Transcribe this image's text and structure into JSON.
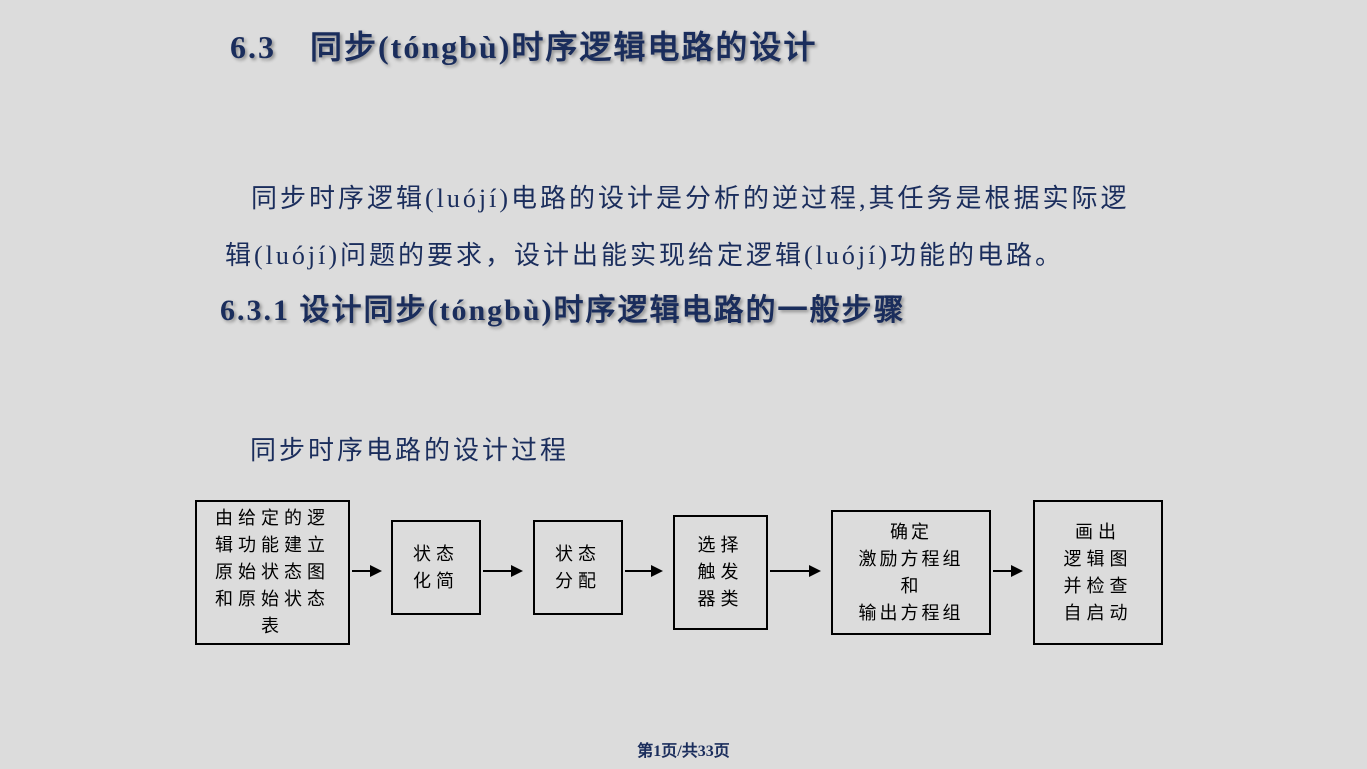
{
  "heading_main": "6.3　同步(tóngbù)时序逻辑电路的设计",
  "body_text": "同步时序逻辑(luójí)电路的设计是分析的逆过程,其任务是根据实际逻辑(luójí)问题的要求，设计出能实现给定逻辑(luójí)功能的电路。",
  "heading_sub": "6.3.1 设计同步(tóngbù)时序逻辑电路的一般步骤",
  "process_label": "同步时序电路的设计过程",
  "flowchart": {
    "boxes": [
      "由给定的逻辑功能建立原始状态图和原始状态表",
      "状态\n化简",
      "状态\n分配",
      "选择\n触发\n器类",
      "确定\n激励方程组\n和\n输出方程组",
      "画出\n逻辑图\n并检查\n自启动"
    ]
  },
  "footer": "第1页/共33页",
  "colors": {
    "background": "#dcdcdc",
    "heading_text": "#1a2d5c",
    "body_text": "#1a2d5c",
    "box_border": "#000000",
    "box_text": "#000000"
  }
}
